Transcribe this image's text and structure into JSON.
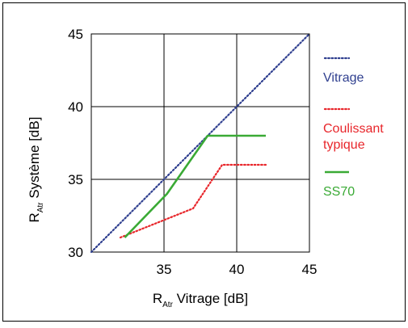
{
  "chart_data": {
    "type": "line",
    "title": "",
    "xlabel": {
      "main": "R",
      "sub": "Atr",
      "rest": " Vitrage [dB]"
    },
    "ylabel": {
      "main": "R",
      "sub": "Atr",
      "rest": " Système [dB]"
    },
    "xlim": [
      30,
      45
    ],
    "ylim": [
      30,
      45
    ],
    "xticks": [
      35,
      40,
      45
    ],
    "yticks": [
      30,
      35,
      40,
      45
    ],
    "grid": true,
    "legend_position": "right",
    "series": [
      {
        "name": "Vitrage",
        "label_lines": [
          "Vitrage"
        ],
        "color": "#2f3f8f",
        "style": "dotted",
        "points": [
          [
            30,
            30
          ],
          [
            45,
            45
          ]
        ]
      },
      {
        "name": "Coulissant typique",
        "label_lines": [
          "Coulissant",
          "typique"
        ],
        "color": "#e8262b",
        "style": "dotted",
        "points": [
          [
            32,
            31
          ],
          [
            37,
            33
          ],
          [
            39,
            36
          ],
          [
            42,
            36
          ]
        ]
      },
      {
        "name": "SS70",
        "label_lines": [
          "SS70"
        ],
        "color": "#3aaa35",
        "style": "solid",
        "points": [
          [
            32.3,
            31
          ],
          [
            35.2,
            34
          ],
          [
            38,
            38
          ],
          [
            42,
            38
          ]
        ]
      }
    ]
  }
}
